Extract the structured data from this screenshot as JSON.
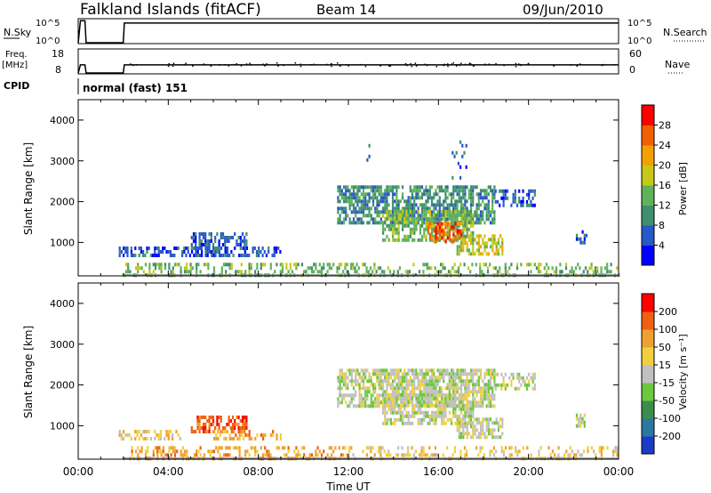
{
  "header": {
    "title": "Falkland Islands (fitACF)",
    "beam": "Beam 14",
    "date": "09/Jun/2010"
  },
  "top_panels": {
    "nsky": {
      "label": "N.Sky",
      "tick_top": "10^5",
      "tick_bottom": "10^0",
      "right_label": "N.Search",
      "right_tick_top": "10^5",
      "right_tick_bottom": "10^0"
    },
    "freq": {
      "label_line1": "Freq.",
      "label_line2": "[MHz]",
      "tick_top": "18",
      "tick_bottom": "8",
      "right_label": "Nave",
      "right_tick_top": "60",
      "right_tick_bottom": "0"
    },
    "cpid": {
      "label": "CPID",
      "mode": "normal (fast) 151"
    }
  },
  "axes": {
    "xlabel": "Time UT",
    "xticks": [
      "00:00",
      "04:00",
      "08:00",
      "12:00",
      "16:00",
      "20:00",
      "00:00"
    ],
    "ylabel": "Slant Range [km]",
    "yticks": [
      "1000",
      "2000",
      "3000",
      "4000"
    ]
  },
  "colorbars": {
    "power": {
      "label": "Power [dB]",
      "ticks": [
        "4",
        "8",
        "12",
        "16",
        "20",
        "24",
        "28"
      ],
      "colors": [
        "#0000ff",
        "#2a58c8",
        "#3d8f6e",
        "#5fb15a",
        "#c8c818",
        "#f5a000",
        "#f06000",
        "#ff0000"
      ]
    },
    "velocity": {
      "label": "Velocity [m s⁻¹]",
      "ticks": [
        "200",
        "100",
        "50",
        "15",
        "-15",
        "-50",
        "-100",
        "-200"
      ],
      "colors": [
        "#1c3cc8",
        "#2a78a0",
        "#3c8c4c",
        "#6cc83c",
        "#c0c0c0",
        "#f0d040",
        "#f0a030",
        "#f06010",
        "#ff0000"
      ]
    }
  },
  "chart_data": [
    {
      "type": "line",
      "name": "N.Sky",
      "xlim": [
        0,
        24
      ],
      "x": [
        0.0,
        0.1,
        0.3,
        0.35,
        2.0,
        2.05,
        24.0
      ],
      "y_frac": [
        0.0,
        0.95,
        0.95,
        0.0,
        0.0,
        0.85,
        0.85
      ]
    },
    {
      "type": "line",
      "name": "Freq.",
      "xlim": [
        0,
        24
      ],
      "ylim": [
        8,
        18
      ],
      "x": [
        0.0,
        0.1,
        0.3,
        0.35,
        2.0,
        2.05,
        24.0
      ],
      "y": [
        8,
        11.5,
        11.5,
        8,
        8,
        11.5,
        11.5
      ]
    },
    {
      "type": "heatmap",
      "name": "Power",
      "x_units": "hours UT",
      "y_units": "km",
      "xlim": [
        0,
        24
      ],
      "ylim": [
        180,
        4500
      ],
      "regions": [
        {
          "t": [
            1.8,
            6.5
          ],
          "r": [
            650,
            900
          ],
          "level": 1,
          "density": 0.6
        },
        {
          "t": [
            5.0,
            7.5
          ],
          "r": [
            900,
            1250
          ],
          "level": 1,
          "density": 0.55
        },
        {
          "t": [
            6.5,
            9.0
          ],
          "r": [
            650,
            900
          ],
          "level": 1,
          "density": 0.45
        },
        {
          "t": [
            11.5,
            18.5
          ],
          "r": [
            1500,
            2400
          ],
          "level": 2,
          "density": 0.7
        },
        {
          "t": [
            13.5,
            17.5
          ],
          "r": [
            1100,
            1800
          ],
          "level": 3,
          "density": 0.65
        },
        {
          "t": [
            15.5,
            17.0
          ],
          "r": [
            1000,
            1500
          ],
          "level": 6,
          "density": 0.6
        },
        {
          "t": [
            16.8,
            18.8
          ],
          "r": [
            700,
            1200
          ],
          "level": 4,
          "density": 0.6
        },
        {
          "t": [
            18.5,
            20.3
          ],
          "r": [
            1900,
            2300
          ],
          "level": 1,
          "density": 0.5
        },
        {
          "t": [
            22.1,
            22.6
          ],
          "r": [
            1000,
            1300
          ],
          "level": 1,
          "density": 0.5
        },
        {
          "t": [
            12.8,
            13.0
          ],
          "r": [
            2800,
            3500
          ],
          "level": 1,
          "density": 0.2
        },
        {
          "t": [
            16.5,
            17.2
          ],
          "r": [
            2600,
            3500
          ],
          "level": 1,
          "density": 0.15
        },
        {
          "t": [
            2.0,
            24.0
          ],
          "r": [
            200,
            500
          ],
          "level": 3,
          "density": 0.35
        }
      ]
    },
    {
      "type": "heatmap",
      "name": "Velocity",
      "x_units": "hours UT",
      "y_units": "km",
      "xlim": [
        0,
        24
      ],
      "ylim": [
        180,
        4500
      ],
      "regions": [
        {
          "t": [
            1.8,
            4.5
          ],
          "r": [
            650,
            900
          ],
          "level": 5,
          "density": 0.5
        },
        {
          "t": [
            5.0,
            7.5
          ],
          "r": [
            900,
            1250
          ],
          "level": 7,
          "density": 0.55
        },
        {
          "t": [
            6.0,
            9.0
          ],
          "r": [
            650,
            900
          ],
          "level": 6,
          "density": 0.45
        },
        {
          "t": [
            11.5,
            18.5
          ],
          "r": [
            1500,
            2400
          ],
          "level": 4,
          "density": 0.75
        },
        {
          "t": [
            13.5,
            17.5
          ],
          "r": [
            1100,
            1800
          ],
          "level": 4,
          "density": 0.7
        },
        {
          "t": [
            16.8,
            18.8
          ],
          "r": [
            700,
            1200
          ],
          "level": 4,
          "density": 0.65
        },
        {
          "t": [
            18.5,
            20.3
          ],
          "r": [
            1900,
            2300
          ],
          "level": 4,
          "density": 0.5
        },
        {
          "t": [
            22.1,
            22.6
          ],
          "r": [
            1000,
            1300
          ],
          "level": 4,
          "density": 0.5
        },
        {
          "t": [
            2.0,
            12.0
          ],
          "r": [
            200,
            500
          ],
          "level": 6,
          "density": 0.4
        },
        {
          "t": [
            12.0,
            24.0
          ],
          "r": [
            200,
            500
          ],
          "level": 5,
          "density": 0.3
        }
      ]
    }
  ]
}
